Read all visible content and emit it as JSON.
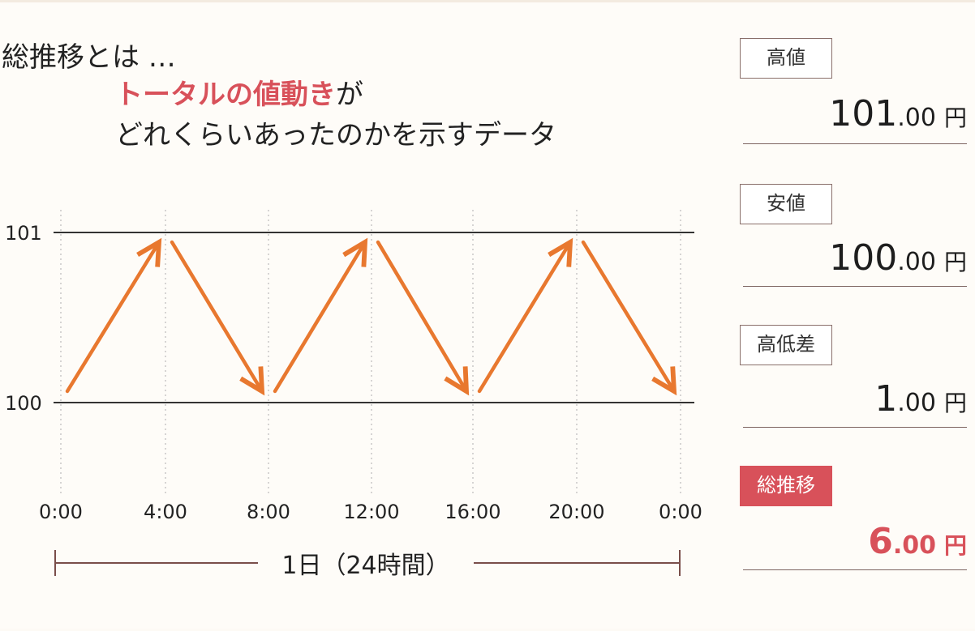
{
  "intro": {
    "line1": "総推移とは …",
    "line2_highlight": "トータルの値動き",
    "line2_rest": "が",
    "line3": "どれくらいあったのかを示すデータ"
  },
  "chart_data": {
    "type": "line",
    "x_ticks": [
      "0:00",
      "4:00",
      "8:00",
      "12:00",
      "16:00",
      "20:00",
      "0:00"
    ],
    "y_ticks": [
      "101",
      "100"
    ],
    "ylim": [
      100,
      101
    ],
    "series": [
      {
        "values": [
          {
            "x": "0:00",
            "y": 100
          },
          {
            "x": "4:00",
            "y": 101
          },
          {
            "x": "8:00",
            "y": 100
          },
          {
            "x": "12:00",
            "y": 101
          },
          {
            "x": "16:00",
            "y": 100
          },
          {
            "x": "20:00",
            "y": 101
          },
          {
            "x": "0:00",
            "y": 100
          }
        ]
      }
    ],
    "span_label": "1日（24時間）",
    "grid": true,
    "colors": {
      "arrow": "#e8782f",
      "hline": "#333333",
      "grid": "#bbbbbb",
      "span": "#7a4e4a"
    }
  },
  "panel": {
    "high": {
      "label": "高値",
      "int": "101",
      "dec": ".00",
      "unit": "円"
    },
    "low": {
      "label": "安値",
      "int": "100",
      "dec": ".00",
      "unit": "円"
    },
    "range": {
      "label": "高低差",
      "int": "1",
      "dec": ".00",
      "unit": "円"
    },
    "total": {
      "label": "総推移",
      "int": "6",
      "dec": ".00",
      "unit": "円"
    }
  },
  "colors": {
    "accent": "#d8515a",
    "background": "#fefcf8"
  }
}
